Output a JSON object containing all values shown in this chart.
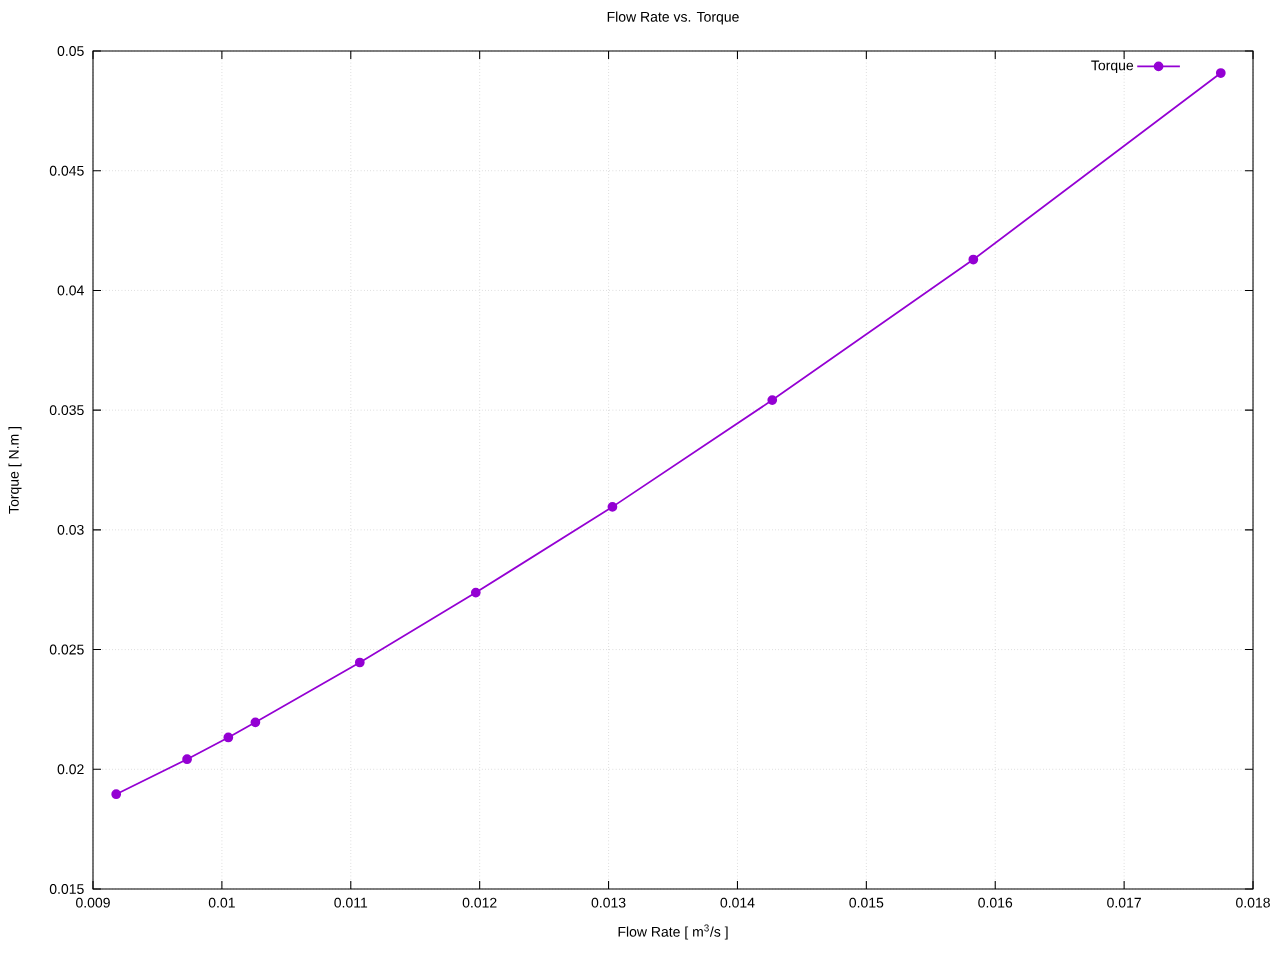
{
  "chart_data": {
    "type": "line",
    "title": "Flow Rate vs. Torque",
    "xlabel": "Flow Rate [ m$^{3}$/s ]",
    "ylabel": "Torque [ N.m ]",
    "x": [
      0.00918,
      0.00973,
      0.01005,
      0.01026,
      0.01107,
      0.01197,
      0.01303,
      0.01427,
      0.01583,
      0.01775
    ],
    "series": [
      {
        "name": "Torque",
        "color": "#9400d3",
        "values": [
          0.01896,
          0.02042,
          0.02133,
          0.02196,
          0.02446,
          0.02738,
          0.03096,
          0.03542,
          0.04129,
          0.04908
        ]
      }
    ],
    "xlim": [
      0.009,
      0.018
    ],
    "ylim": [
      0.015,
      0.05
    ],
    "xticks": [
      0.009,
      0.01,
      0.011,
      0.012,
      0.013,
      0.014,
      0.015,
      0.016,
      0.017,
      0.018
    ],
    "yticks": [
      0.015,
      0.02,
      0.025,
      0.03,
      0.035,
      0.04,
      0.045,
      0.05
    ],
    "grid": true,
    "legend": "top right",
    "marker": "circle",
    "line_style": "solid"
  }
}
